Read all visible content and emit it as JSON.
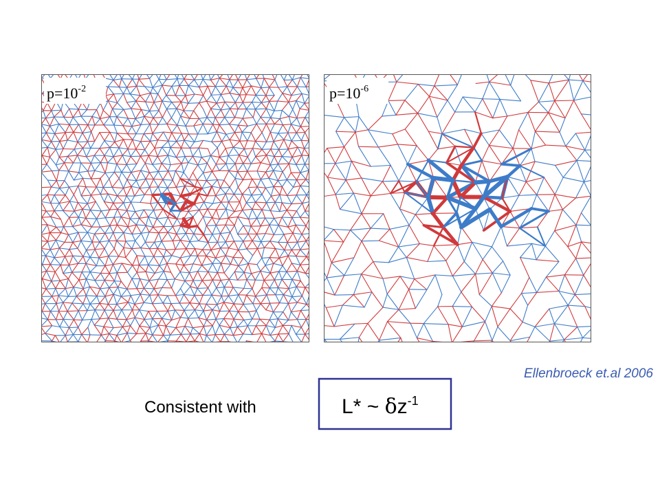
{
  "panels": [
    {
      "label": "p=10",
      "exponent": "-2"
    },
    {
      "label": "p=10",
      "exponent": "-6"
    }
  ],
  "citation": "Ellenbroeck et.al 2006",
  "caption": "Consistent with",
  "formula": {
    "base": "L* ~ ",
    "delta": "δ",
    "variable": "z",
    "exponent": "-1"
  }
}
